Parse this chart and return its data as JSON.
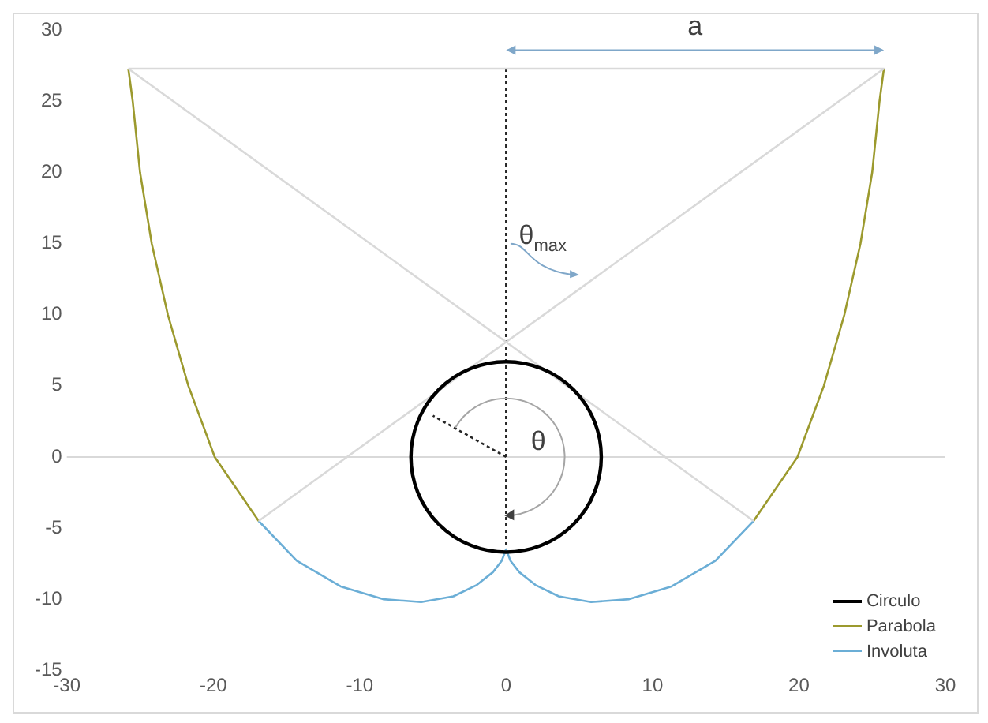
{
  "chart_data": {
    "type": "line",
    "xlim": [
      -30,
      30
    ],
    "ylim": [
      -15,
      30
    ],
    "xticks": [
      -30,
      -20,
      -10,
      0,
      10,
      20,
      30
    ],
    "yticks": [
      -15,
      -10,
      -5,
      0,
      5,
      10,
      15,
      20,
      25,
      30
    ],
    "legend": "bottom right",
    "annotations": [
      "a",
      "θ$_{max}$",
      "θ"
    ],
    "series": [
      {
        "color": "#d9d9d9",
        "x": [
          -25.8,
          25.8,
          -16.9
        ],
        "values": [
          27.3,
          27.3,
          -4.5
        ]
      },
      {
        "color": "#d9d9d9",
        "x": [
          -25.8,
          16.9
        ],
        "values": [
          27.3,
          -4.5
        ]
      },
      {
        "color": "#262626",
        "line_style": "dotted",
        "x": [
          0,
          0
        ],
        "values": [
          27.3,
          -6.5
        ]
      },
      {
        "color": "#262626",
        "line_style": "dotted",
        "x": [
          0,
          -5
        ],
        "values": [
          0,
          2.9
        ]
      },
      {
        "name": "Circulo",
        "color": "#000000"
      },
      {
        "name": "Parabola",
        "color": "#9c9a2e",
        "x": [
          -25.8,
          -25.5,
          -25.0,
          -24.2,
          -23.1,
          -21.7,
          -19.9,
          -16.9,
          0,
          16.9,
          19.9,
          21.7,
          23.1,
          24.2,
          25.0,
          25.5,
          25.8
        ],
        "values": [
          27.3,
          25,
          20,
          15,
          10,
          5,
          0,
          -4.5,
          null,
          -4.5,
          0,
          5,
          10,
          15,
          20,
          25,
          27.3
        ]
      },
      {
        "name": "Involuta",
        "color": "#6baed6",
        "x": [
          -16.9,
          -14.3,
          -11.3,
          -8.4,
          -5.8,
          -3.6,
          -2.0,
          -0.9,
          -0.3,
          0,
          0.3,
          0.9,
          2.0,
          3.6,
          5.8,
          8.4,
          11.3,
          14.3,
          16.9
        ],
        "values": [
          -4.5,
          -7.3,
          -9.1,
          -10.0,
          -10.2,
          -9.8,
          -9.0,
          -8.1,
          -7.3,
          -6.5,
          -7.3,
          -8.1,
          -9.0,
          -9.8,
          -10.2,
          -10.0,
          -9.1,
          -7.3,
          -4.5
        ]
      }
    ]
  }
}
